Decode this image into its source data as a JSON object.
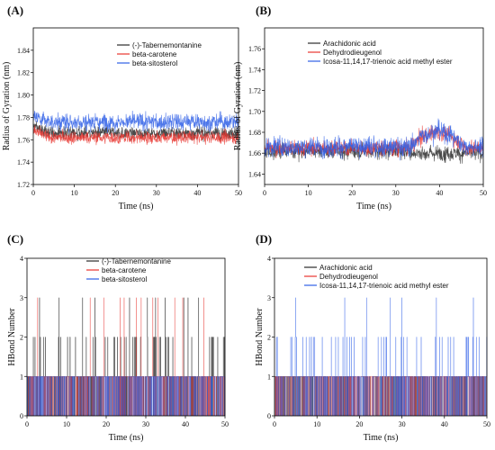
{
  "chart_data": [
    {
      "panel": "(A)",
      "type": "line",
      "xlabel": "Time (ns)",
      "ylabel": "Radius of Gyration (nm)",
      "xlim": [
        0,
        50
      ],
      "ylim": [
        1.72,
        1.86
      ],
      "xticks": [
        "0",
        "10",
        "20",
        "30",
        "40",
        "50"
      ],
      "yticks": [
        "1.72",
        "1.74",
        "1.76",
        "1.78",
        "1.80",
        "1.82",
        "1.84"
      ],
      "legend_position": "top-right",
      "grid": false,
      "series": [
        {
          "name": "(-)-Tabernemontanine",
          "color": "#2a2a2a",
          "mean": 1.766,
          "amp": 0.006,
          "spikes": 0
        },
        {
          "name": "beta-carotene",
          "color": "#e8342e",
          "mean": 1.762,
          "amp": 0.006,
          "spikes": 0
        },
        {
          "name": "beta-sitosterol",
          "color": "#2f5fe6",
          "mean": 1.776,
          "amp": 0.008,
          "spikes": 0
        }
      ]
    },
    {
      "panel": "(B)",
      "type": "line",
      "xlabel": "Time (ns)",
      "ylabel": "Radius of Gyration (nm)",
      "xlim": [
        0,
        50
      ],
      "ylim": [
        1.63,
        1.78
      ],
      "xticks": [
        "0",
        "10",
        "20",
        "30",
        "40",
        "50"
      ],
      "yticks": [
        "1.64",
        "1.66",
        "1.68",
        "1.70",
        "1.72",
        "1.74",
        "1.76"
      ],
      "legend_position": "top-right",
      "grid": false,
      "series": [
        {
          "name": "Arachidonic acid",
          "color": "#2a2a2a",
          "mean": 1.662,
          "amp": 0.008,
          "spikes": 0
        },
        {
          "name": "Dehydrodieugenol",
          "color": "#e8342e",
          "mean": 1.665,
          "amp": 0.008,
          "spikes": 0
        },
        {
          "name": "Icosa-11,14,17-trienoic acid methyl ester",
          "color": "#2f5fe6",
          "mean": 1.666,
          "amp": 0.01,
          "spikes": 0
        }
      ]
    },
    {
      "panel": "(C)",
      "type": "line",
      "xlabel": "Time (ns)",
      "ylabel": "HBond Number",
      "xlim": [
        0,
        50
      ],
      "ylim": [
        0,
        4
      ],
      "xticks": [
        "0",
        "10",
        "20",
        "30",
        "40",
        "50"
      ],
      "yticks": [
        "0",
        "1",
        "2",
        "3",
        "4"
      ],
      "legend_position": "top-center",
      "grid": false,
      "series": [
        {
          "name": "(-)-Tabernemontanine",
          "color": "#2a2a2a",
          "mean": 1,
          "amp": 0,
          "spikes": 1
        },
        {
          "name": "beta-carotene",
          "color": "#e8342e",
          "mean": 1,
          "amp": 0,
          "spikes": 0
        },
        {
          "name": "beta-sitosterol",
          "color": "#2f5fe6",
          "mean": 1,
          "amp": 0,
          "spikes": 0
        }
      ]
    },
    {
      "panel": "(D)",
      "type": "line",
      "xlabel": "Time (ns)",
      "ylabel": "HBond Number",
      "xlim": [
        0,
        50
      ],
      "ylim": [
        0,
        4
      ],
      "xticks": [
        "0",
        "10",
        "20",
        "30",
        "40",
        "50"
      ],
      "yticks": [
        "0",
        "1",
        "2",
        "3",
        "4"
      ],
      "legend_position": "top-right",
      "grid": false,
      "series": [
        {
          "name": "Arachidonic acid",
          "color": "#2a2a2a",
          "mean": 1,
          "amp": 0,
          "spikes": 0
        },
        {
          "name": "Dehydrodieugenol",
          "color": "#e8342e",
          "mean": 1,
          "amp": 0,
          "spikes": 0
        },
        {
          "name": "Icosa-11,14,17-trienoic acid methyl ester",
          "color": "#2f5fe6",
          "mean": 1,
          "amp": 0,
          "spikes": 1
        }
      ]
    }
  ]
}
